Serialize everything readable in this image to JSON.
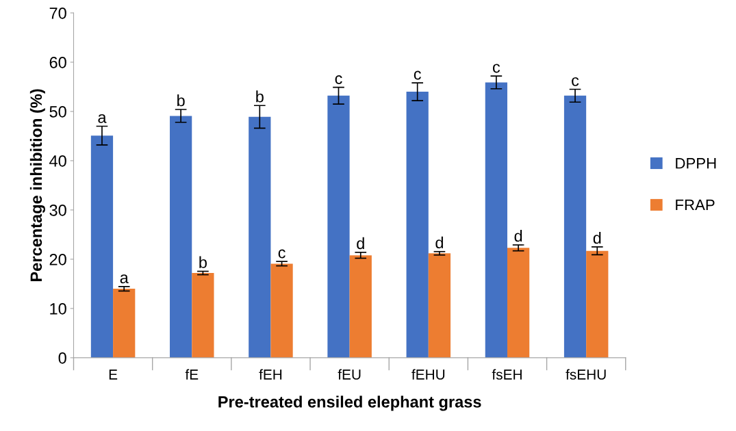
{
  "chart_data": {
    "type": "bar",
    "xlabel": "Pre-treated ensiled elephant grass",
    "ylabel": "Percentage inhibition (%)",
    "categories": [
      "E",
      "fE",
      "fEH",
      "fEU",
      "fEHU",
      "fsEH",
      "fsEHU"
    ],
    "series": [
      {
        "name": "DPPH",
        "color": "#4472c4",
        "values": [
          45.1,
          49.1,
          48.9,
          53.2,
          54.0,
          55.9,
          53.2
        ],
        "errors": [
          1.9,
          1.3,
          2.3,
          1.7,
          1.8,
          1.3,
          1.3
        ],
        "value_labels": [
          "a",
          "b",
          "b",
          "c",
          "c",
          "c",
          "c"
        ]
      },
      {
        "name": "FRAP",
        "color": "#ed7d31",
        "values": [
          14.0,
          17.2,
          19.1,
          20.8,
          21.2,
          22.3,
          21.7
        ],
        "errors": [
          0.45,
          0.35,
          0.45,
          0.6,
          0.35,
          0.6,
          0.8
        ],
        "value_labels": [
          "a",
          "b",
          "c",
          "d",
          "d",
          "d",
          "d"
        ]
      }
    ],
    "ylim": [
      0,
      70
    ],
    "yticks": [
      0,
      10,
      20,
      30,
      40,
      50,
      60,
      70
    ],
    "grid": false,
    "legend": "right"
  }
}
